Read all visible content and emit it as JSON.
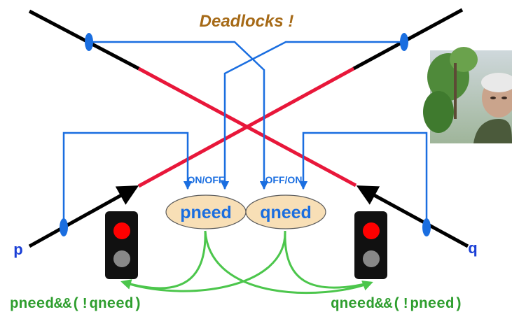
{
  "title": "Deadlocks !",
  "left_switch_label": "ON/OFF",
  "right_switch_label": "OFF/ON",
  "left_flag": "pneed",
  "right_flag": "qneed",
  "left_process": "p",
  "right_process": "q",
  "left_condition": "pneed&&(!qneed)",
  "right_condition": "qneed&&(!pneed)",
  "colors": {
    "title": "#a66a17",
    "track": "#000000",
    "critical_section": "#e8173a",
    "signal_wire": "#1a6ee0",
    "flag_fill": "#f8dfb6",
    "flag_text": "#1a6ee0",
    "condition_text": "#2e9e2e",
    "condition_arrow": "#4cc64c",
    "light_red": "#ff0000",
    "light_off": "#888888"
  },
  "icons": [
    "traffic-light-icon",
    "photo-thumbnail"
  ]
}
